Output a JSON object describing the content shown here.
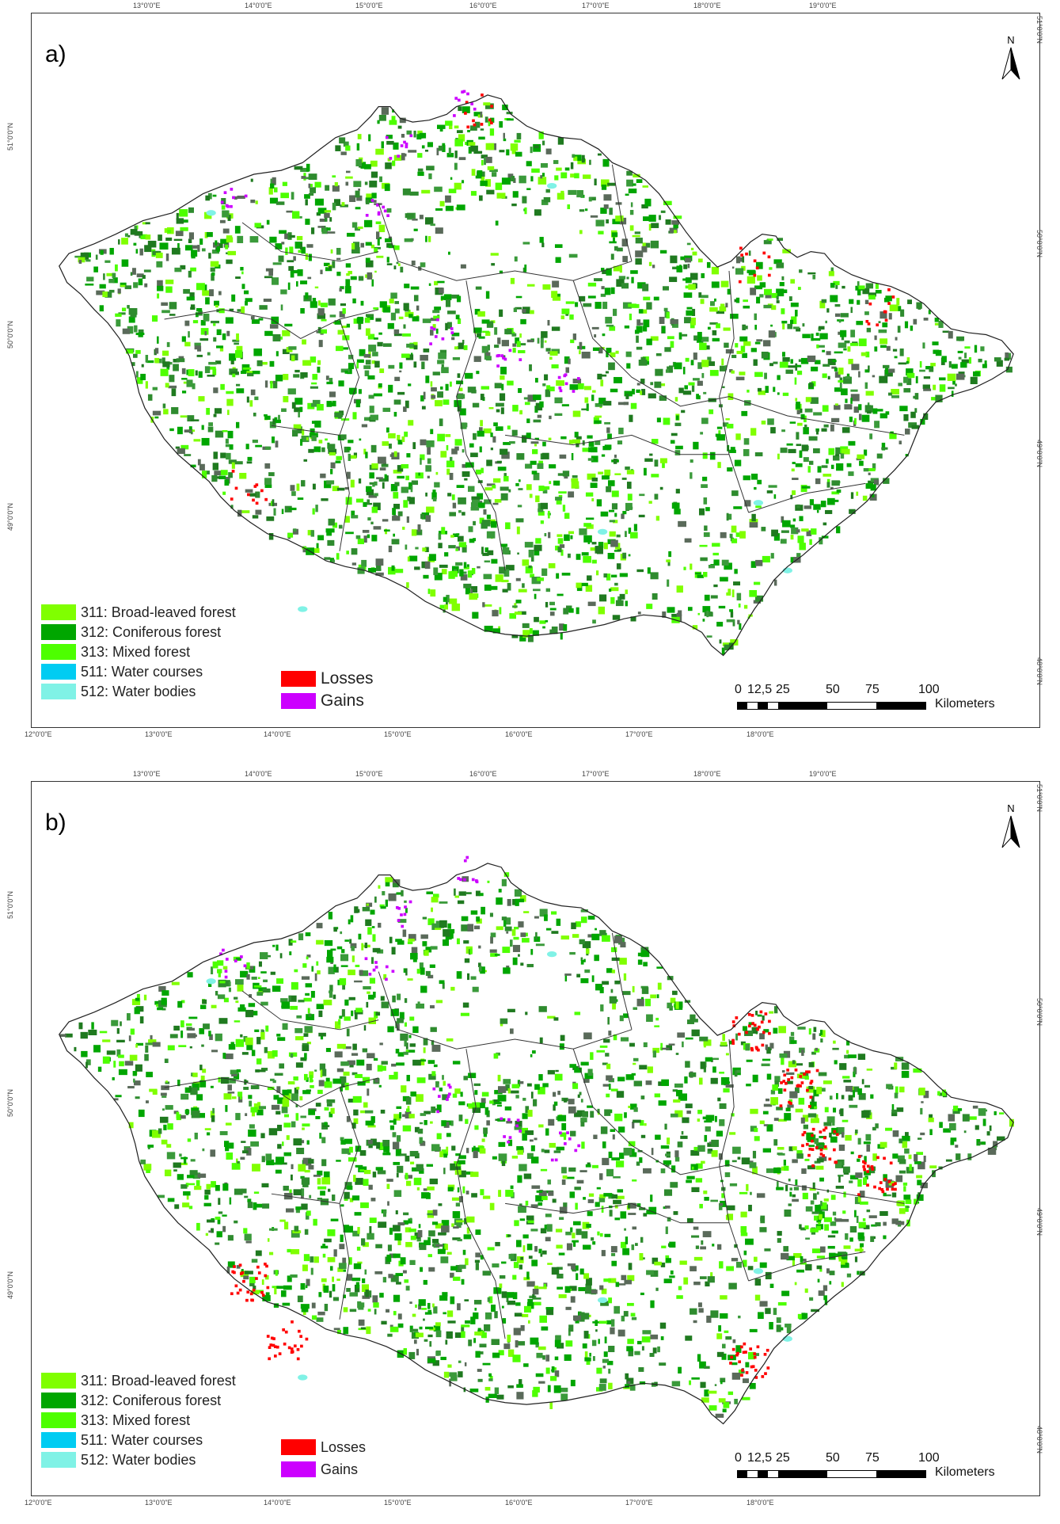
{
  "panels": [
    {
      "label": "a)",
      "top_ticks": [
        "13°0'0\"E",
        "14°0'0\"E",
        "15°0'0\"E",
        "16°0'0\"E",
        "17°0'0\"E",
        "18°0'0\"E",
        "19°0'0\"E"
      ],
      "bottom_ticks": [
        "12°0'0\"E",
        "13°0'0\"E",
        "14°0'0\"E",
        "15°0'0\"E",
        "16°0'0\"E",
        "17°0'0\"E",
        "18°0'0\"E"
      ],
      "left_ticks": [
        "51°0'0\"N",
        "50°0'0\"N",
        "49°0'0\"N"
      ],
      "right_ticks": [
        "51°0'0\"N",
        "50°0'0\"N",
        "49°0'0\"N",
        "48°0'0\"N"
      ]
    },
    {
      "label": "b)",
      "top_ticks": [
        "13°0'0\"E",
        "14°0'0\"E",
        "15°0'0\"E",
        "16°0'0\"E",
        "17°0'0\"E",
        "18°0'0\"E",
        "19°0'0\"E"
      ],
      "bottom_ticks": [
        "12°0'0\"E",
        "13°0'0\"E",
        "14°0'0\"E",
        "15°0'0\"E",
        "16°0'0\"E",
        "17°0'0\"E",
        "18°0'0\"E"
      ],
      "left_ticks": [
        "51°0'0\"N",
        "50°0'0\"N",
        "49°0'0\"N"
      ],
      "right_ticks": [
        "51°0'0\"N",
        "50°0'0\"N",
        "49°0'0\"N",
        "48°0'0\"N"
      ]
    }
  ],
  "legend": {
    "classes": [
      {
        "label": "311: Broad-leaved forest",
        "color": "#80ff00"
      },
      {
        "label": "312: Coniferous forest",
        "color": "#00a600"
      },
      {
        "label": "313: Mixed forest",
        "color": "#4dff00"
      },
      {
        "label": "511: Water courses",
        "color": "#00ccf2"
      },
      {
        "label": "512: Water bodies",
        "color": "#80f2e6"
      }
    ],
    "changes": [
      {
        "label": "Losses",
        "color": "#ff0000"
      },
      {
        "label": "Gains",
        "color": "#cc00ff"
      }
    ]
  },
  "scale": {
    "labels": [
      "0",
      "12,5",
      "25",
      "50",
      "75",
      "100"
    ],
    "unit": "Kilometers"
  },
  "north_label": "N"
}
